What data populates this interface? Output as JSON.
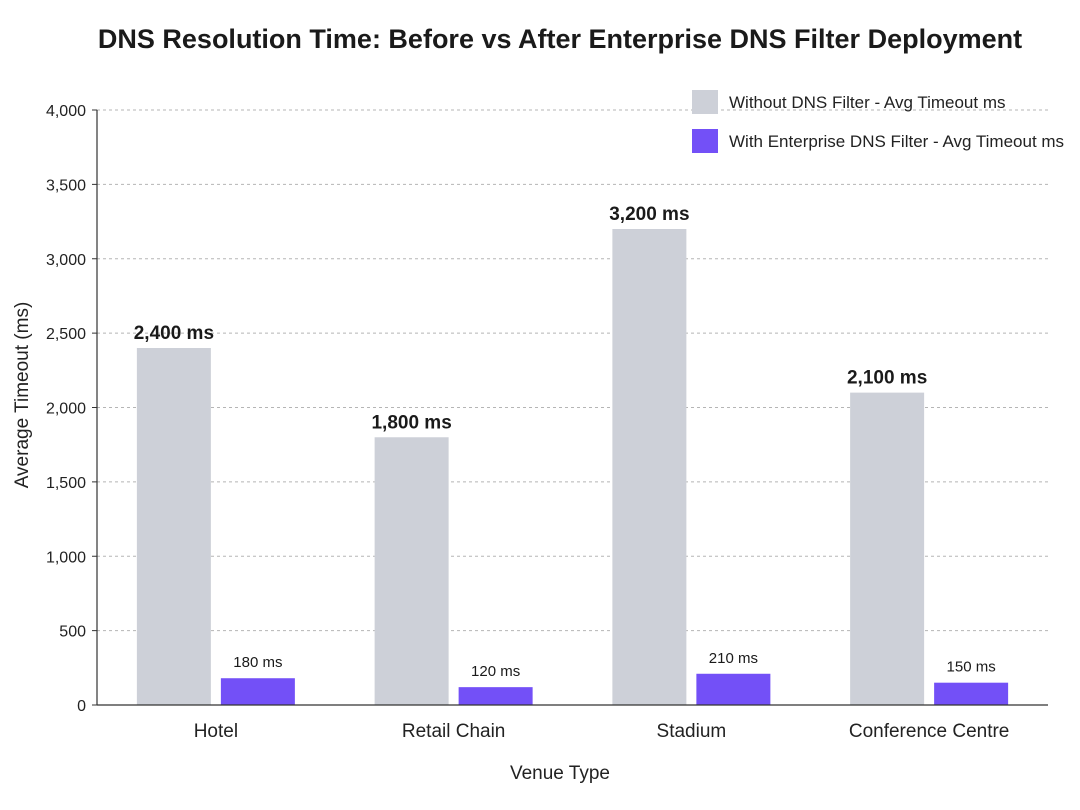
{
  "chart_data": {
    "type": "bar",
    "title": "DNS Resolution Time: Before vs After Enterprise DNS Filter Deployment",
    "xlabel": "Venue Type",
    "ylabel": "Average Timeout (ms)",
    "ylim": [
      0,
      4000
    ],
    "yticks": [
      0,
      500,
      1000,
      1500,
      2000,
      2500,
      3000,
      3500,
      4000
    ],
    "ytick_labels": [
      "0",
      "500",
      "1,000",
      "1,500",
      "2,000",
      "2,500",
      "3,000",
      "3,500",
      "4,000"
    ],
    "categories": [
      "Hotel",
      "Retail Chain",
      "Stadium",
      "Conference Centre"
    ],
    "series": [
      {
        "name": "Without DNS Filter - Avg Timeout ms",
        "color": "#cdd0d8",
        "values": [
          2400,
          1800,
          3200,
          2100
        ],
        "labels": [
          "2,400 ms",
          "1,800 ms",
          "3,200 ms",
          "2,100 ms"
        ]
      },
      {
        "name": "With Enterprise DNS Filter - Avg Timeout ms",
        "color": "#7350f7",
        "values": [
          180,
          120,
          210,
          150
        ],
        "labels": [
          "180 ms",
          "120 ms",
          "210 ms",
          "150 ms"
        ]
      }
    ],
    "grid": "horizontal-dashed",
    "legend_position": "top-right"
  }
}
